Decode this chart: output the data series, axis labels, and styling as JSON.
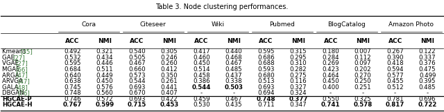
{
  "title": "Table 3. Node clustering performances.",
  "datasets": [
    "Cora",
    "Citeseer",
    "Wiki",
    "Pubmed",
    "BlogCatalog",
    "Amazon Photo"
  ],
  "methods": [
    [
      "Kmeans ",
      "[35]"
    ],
    [
      "GAE ",
      "[27]"
    ],
    [
      "VGAE ",
      "[27]"
    ],
    [
      "MGAE ",
      "[66]"
    ],
    [
      "ARGA ",
      "[47]"
    ],
    [
      "ARVGA ",
      "[47]"
    ],
    [
      "GALA ",
      "[48]"
    ],
    [
      "DBGAN ",
      "[76]"
    ],
    [
      "HGCAE-P",
      ""
    ],
    [
      "HGCAE-H",
      ""
    ]
  ],
  "method_bold": [
    false,
    false,
    false,
    false,
    false,
    false,
    false,
    false,
    true,
    true
  ],
  "data": [
    [
      0.492,
      0.321,
      0.54,
      0.305,
      0.417,
      0.44,
      0.595,
      0.315,
      0.18,
      0.007,
      0.267,
      0.122
    ],
    [
      0.532,
      0.434,
      0.505,
      0.246,
      0.46,
      0.468,
      0.686,
      0.295,
      0.284,
      0.112,
      0.39,
      0.337
    ],
    [
      0.595,
      0.446,
      0.467,
      0.26,
      0.45,
      0.467,
      0.688,
      0.31,
      0.269,
      0.097,
      0.418,
      0.376
    ],
    [
      0.684,
      0.511,
      0.66,
      0.412,
      0.514,
      0.485,
      0.593,
      0.282,
      0.423,
      0.202,
      0.594,
      0.475
    ],
    [
      0.64,
      0.449,
      0.573,
      0.35,
      0.458,
      0.437,
      0.68,
      0.275,
      0.464,
      0.27,
      0.577,
      0.499
    ],
    [
      0.638,
      0.45,
      0.544,
      0.261,
      0.386,
      0.338,
      0.513,
      0.116,
      0.45,
      0.25,
      0.455,
      0.395
    ],
    [
      0.745,
      0.576,
      0.693,
      0.441,
      0.544,
      0.503,
      0.693,
      0.327,
      0.4,
      0.251,
      0.512,
      0.485
    ],
    [
      0.748,
      0.56,
      0.67,
      0.407,
      null,
      null,
      0.694,
      0.324,
      null,
      null,
      null,
      null
    ],
    [
      0.746,
      0.572,
      0.693,
      0.422,
      0.459,
      0.467,
      0.748,
      0.377,
      0.55,
      0.325,
      0.781,
      0.696
    ],
    [
      0.767,
      0.599,
      0.715,
      0.453,
      0.53,
      0.435,
      0.711,
      0.347,
      0.741,
      0.578,
      0.817,
      0.722
    ]
  ],
  "bold": [
    [
      false,
      false,
      false,
      false,
      false,
      false,
      false,
      false,
      false,
      false,
      false,
      false
    ],
    [
      false,
      false,
      false,
      false,
      false,
      false,
      false,
      false,
      false,
      false,
      false,
      false
    ],
    [
      false,
      false,
      false,
      false,
      false,
      false,
      false,
      false,
      false,
      false,
      false,
      false
    ],
    [
      false,
      false,
      false,
      false,
      false,
      false,
      false,
      false,
      false,
      false,
      false,
      false
    ],
    [
      false,
      false,
      false,
      false,
      false,
      false,
      false,
      false,
      false,
      false,
      false,
      false
    ],
    [
      false,
      false,
      false,
      false,
      false,
      false,
      false,
      false,
      false,
      false,
      false,
      false
    ],
    [
      false,
      false,
      false,
      false,
      true,
      true,
      false,
      false,
      false,
      false,
      false,
      false
    ],
    [
      false,
      false,
      false,
      false,
      false,
      false,
      false,
      false,
      false,
      false,
      false,
      false
    ],
    [
      false,
      false,
      false,
      false,
      false,
      false,
      true,
      true,
      false,
      false,
      false,
      false
    ],
    [
      true,
      true,
      true,
      true,
      false,
      false,
      false,
      false,
      true,
      true,
      true,
      true
    ]
  ],
  "ref_color": "#3a7d3a",
  "title_fontsize": 7.0,
  "header_fontsize": 6.5,
  "cell_fontsize": 6.2,
  "fig_width": 6.4,
  "fig_height": 1.62
}
